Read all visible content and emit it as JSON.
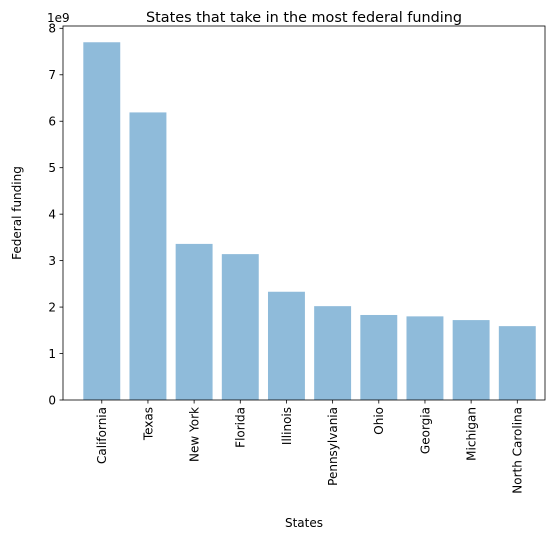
{
  "chart_data": {
    "type": "bar",
    "title": "States that take in the most federal funding",
    "xlabel": "States",
    "ylabel": "Federal funding",
    "y_offset_label": "1e9",
    "categories": [
      "California",
      "Texas",
      "New York",
      "Florida",
      "Illinois",
      "Pennsylvania",
      "Ohio",
      "Georgia",
      "Michigan",
      "North Carolina"
    ],
    "values": [
      7.7,
      6.19,
      3.36,
      3.14,
      2.33,
      2.02,
      1.83,
      1.8,
      1.72,
      1.59
    ],
    "value_scale": 1000000000,
    "ylim": [
      0,
      8.05
    ],
    "yticks": [
      "0",
      "1",
      "2",
      "3",
      "4",
      "5",
      "6",
      "7",
      "8"
    ],
    "bar_color": "#8fbbda",
    "grid": false,
    "legend": false
  }
}
